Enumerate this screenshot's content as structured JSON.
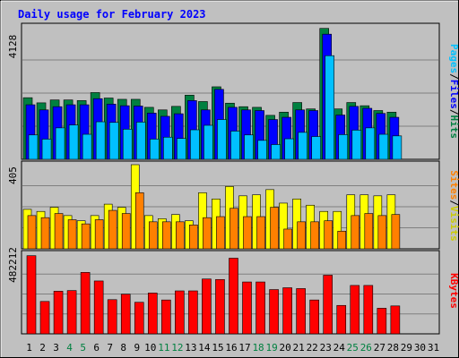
{
  "chart_data": {
    "type": "bar",
    "title": "Daily usage for February 2023",
    "x": [
      "1",
      "2",
      "3",
      "4",
      "5",
      "6",
      "7",
      "8",
      "9",
      "10",
      "11",
      "12",
      "13",
      "14",
      "15",
      "16",
      "17",
      "18",
      "19",
      "20",
      "21",
      "22",
      "23",
      "24",
      "25",
      "26",
      "27",
      "28",
      "29",
      "30",
      "31"
    ],
    "weekend_days": [
      4,
      5,
      11,
      12,
      18,
      19,
      25,
      26
    ],
    "panels": [
      {
        "id": "hits",
        "ymax": 4128,
        "ymax_label": "4128",
        "right_labels": [
          "Pages",
          "Files",
          "Hits"
        ],
        "series": [
          {
            "name": "Hits",
            "color": "#008040",
            "values": [
              1920,
              1760,
              1850,
              1850,
              1830,
              2080,
              1910,
              1870,
              1870,
              1620,
              1540,
              1650,
              2000,
              1800,
              2260,
              1750,
              1640,
              1620,
              1370,
              1470,
              1770,
              1570,
              4080,
              1570,
              1770,
              1670,
              1520,
              1470
            ]
          },
          {
            "name": "Files",
            "color": "#0000ff",
            "values": [
              1700,
              1540,
              1640,
              1700,
              1700,
              1890,
              1720,
              1670,
              1660,
              1440,
              1340,
              1420,
              1830,
              1540,
              2180,
              1620,
              1540,
              1520,
              1240,
              1310,
              1540,
              1520,
              3900,
              1380,
              1650,
              1590,
              1430,
              1310
            ]
          },
          {
            "name": "Pages",
            "color": "#00c0ff",
            "values": [
              760,
              630,
              980,
              1070,
              780,
              1170,
              1150,
              940,
              1160,
              630,
              690,
              650,
              920,
              1060,
              1240,
              880,
              760,
              590,
              460,
              640,
              840,
              710,
              3230,
              770,
              910,
              980,
              780,
              730
            ]
          }
        ]
      },
      {
        "id": "visits",
        "ymax": 405,
        "ymax_label": "405",
        "right_labels": [
          "Sites",
          "Visits"
        ],
        "series": [
          {
            "name": "Visits",
            "color": "#ffff00",
            "values": [
              190,
              180,
              200,
              160,
              135,
              160,
              215,
              200,
              405,
              160,
              145,
              165,
              135,
              270,
              240,
              300,
              255,
              260,
              285,
              220,
              240,
              210,
              180,
              180,
              260,
              260,
              255,
              260
            ]
          },
          {
            "name": "Sites",
            "color": "#ff8000",
            "values": [
              160,
              150,
              170,
              140,
              120,
              140,
              185,
              170,
              270,
              130,
              130,
              130,
              115,
              150,
              155,
              195,
              155,
              155,
              200,
              95,
              130,
              130,
              135,
              85,
              160,
              170,
              160,
              165
            ]
          }
        ]
      },
      {
        "id": "kbytes",
        "ymax": 482212,
        "ymax_label": "482212",
        "right_labels": [
          "KBytes"
        ],
        "series": [
          {
            "name": "KBytes",
            "color": "#ff0000",
            "values": [
              473000,
              196000,
              258000,
              262000,
              372000,
              320000,
              207000,
              240000,
              191000,
              247000,
              205000,
              260000,
              260000,
              332000,
              329000,
              458000,
              314000,
              314000,
              268000,
              279000,
              274000,
              205000,
              355000,
              172000,
              293000,
              293000,
              155000,
              169000
            ]
          }
        ]
      }
    ]
  }
}
